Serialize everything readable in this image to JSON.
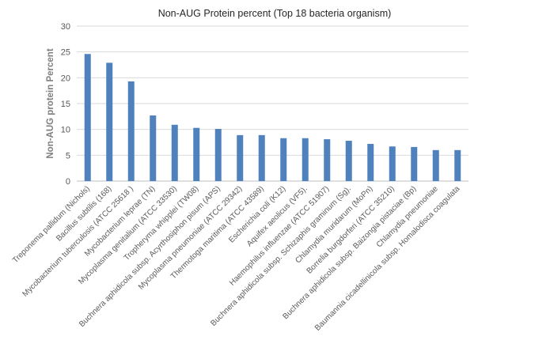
{
  "chart_data": {
    "type": "bar",
    "title": "Non-AUG Protein percent (Top 18 bacteria organism)",
    "xlabel": "",
    "ylabel": "Non-AUG protein Percent",
    "ylim": [
      0,
      30
    ],
    "yticks": [
      0,
      5,
      10,
      15,
      20,
      25,
      30
    ],
    "grid": true,
    "legend": "none",
    "bar_color": "#4f81bd",
    "categories": [
      "Treponema pallidum (Nichols)",
      "Bacillus subtilis (168)",
      "Mycobacterium tuberculosis (ATCC 25618 )",
      "Mycobacterium leprae (TN)",
      "Mycoplasma genitalium (ATCC 33530)",
      "Tropheryma whipplei (TW08)",
      "Buchnera aphidicola subsp. Acyrthosiphon pisum (APS)",
      "Mycoplasma pneumoniae (ATCC 29342)",
      "Thermotoga maritima (ATCC 43589)",
      "Escherichia coli (K12)",
      "Aquifex aeolicus (VF5).",
      "Haemophilus influenzae (ATCC 51907)",
      "Buchnera aphidicola subsp. Schizaphis graminum (Sg).",
      "Chlamydia muridarum (MoPn)",
      "Borrelia burgdorferi (ATCC 35210)",
      "Buchnera aphidicola subsp. Baizongia pistaciae (Bp)",
      "Chlamydia pneumoniae",
      "Baumannia cicadellinicola subsp. Homalodisca coagulata"
    ],
    "values": [
      24.6,
      22.9,
      19.3,
      12.7,
      10.9,
      10.3,
      10.1,
      8.9,
      8.9,
      8.3,
      8.3,
      8.1,
      7.8,
      7.2,
      6.7,
      6.6,
      6.0,
      6.0
    ]
  }
}
